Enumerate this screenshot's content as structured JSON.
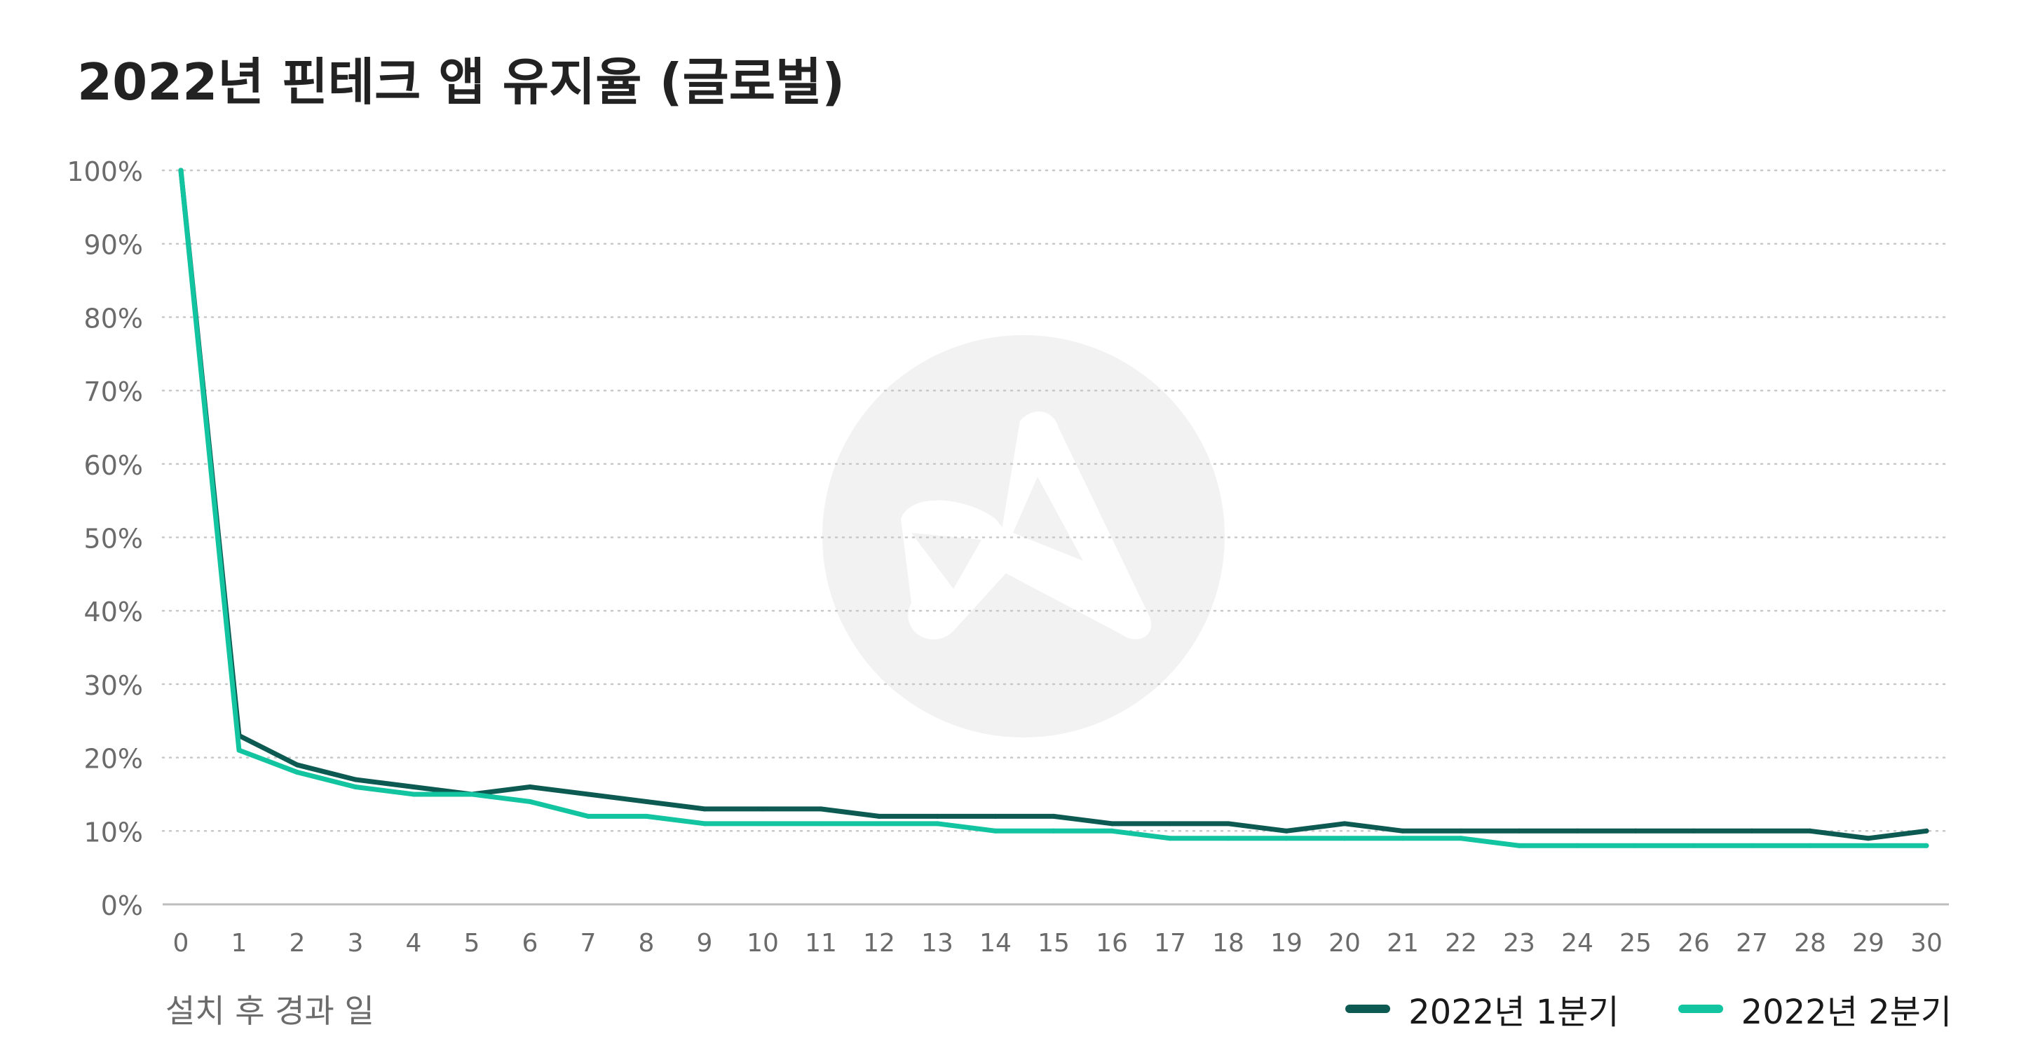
{
  "colors": {
    "series_q1": "#0d5a52",
    "series_q2": "#12c4a0",
    "grid": "#c8c8c8",
    "axis_line": "#bdbdbd",
    "tick_label": "#6b6b6b",
    "watermark": "#f2f2f2"
  },
  "watermark_icon": "appsflyer-logo-icon",
  "chart_data": {
    "type": "line",
    "title": "2022년 핀테크 앱 유지율 (글로벌)",
    "xlabel": "설치 후 경과 일",
    "ylabel": "",
    "x": [
      0,
      1,
      2,
      3,
      4,
      5,
      6,
      7,
      8,
      9,
      10,
      11,
      12,
      13,
      14,
      15,
      16,
      17,
      18,
      19,
      20,
      21,
      22,
      23,
      24,
      25,
      26,
      27,
      28,
      29,
      30
    ],
    "x_tick_labels": [
      "0",
      "1",
      "2",
      "3",
      "4",
      "5",
      "6",
      "7",
      "8",
      "9",
      "10",
      "11",
      "12",
      "13",
      "14",
      "15",
      "16",
      "17",
      "18",
      "19",
      "20",
      "21",
      "22",
      "23",
      "24",
      "25",
      "26",
      "27",
      "28",
      "29",
      "30"
    ],
    "xlim": [
      0,
      30
    ],
    "ylim": [
      0,
      100
    ],
    "y_ticks": [
      0,
      10,
      20,
      30,
      40,
      50,
      60,
      70,
      80,
      90,
      100
    ],
    "y_tick_labels": [
      "0%",
      "10%",
      "20%",
      "30%",
      "40%",
      "50%",
      "60%",
      "70%",
      "80%",
      "90%",
      "100%"
    ],
    "grid": "horizontal dotted",
    "legend_position": "bottom-right",
    "series": [
      {
        "name": "2022년 1분기",
        "color_key": "series_q1",
        "values": [
          100,
          23,
          19,
          17,
          16,
          15,
          16,
          15,
          14,
          13,
          13,
          13,
          12,
          12,
          12,
          12,
          11,
          11,
          11,
          10,
          11,
          10,
          10,
          10,
          10,
          10,
          10,
          10,
          10,
          9,
          10
        ]
      },
      {
        "name": "2022년 2분기",
        "color_key": "series_q2",
        "values": [
          100,
          21,
          18,
          16,
          15,
          15,
          14,
          12,
          12,
          11,
          11,
          11,
          11,
          11,
          10,
          10,
          10,
          9,
          9,
          9,
          9,
          9,
          9,
          8,
          8,
          8,
          8,
          8,
          8,
          8,
          8
        ]
      }
    ]
  }
}
